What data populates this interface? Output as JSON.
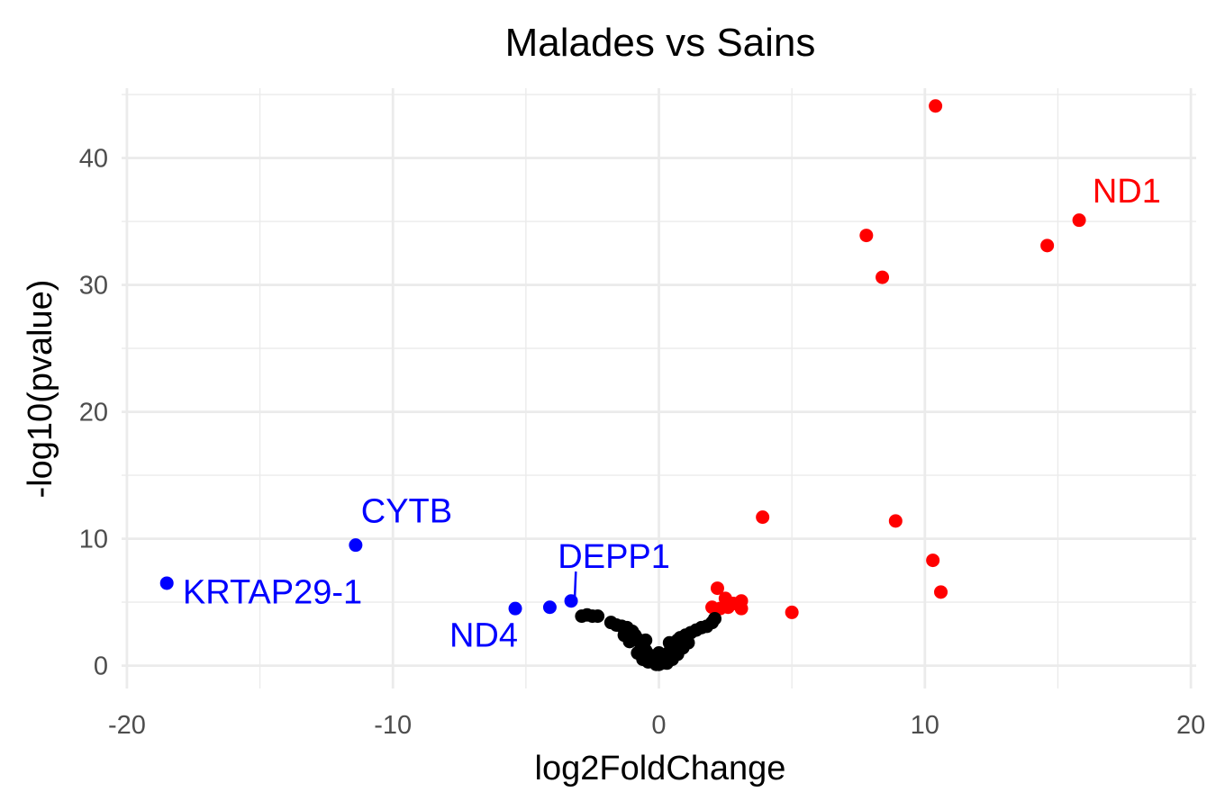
{
  "chart_data": {
    "type": "scatter",
    "title": "Malades vs Sains",
    "xlabel": "log2FoldChange",
    "ylabel": "-log10(pvalue)",
    "xlim": [
      -20.2,
      20.2
    ],
    "ylim": [
      -1.8,
      45.5
    ],
    "x_ticks": [
      -20,
      -10,
      0,
      10,
      20
    ],
    "x_tick_labels": [
      "-20",
      "-10",
      "0",
      "10",
      "20"
    ],
    "y_ticks": [
      0,
      10,
      20,
      30,
      40
    ],
    "y_tick_labels": [
      "0",
      "10",
      "20",
      "30",
      "40"
    ],
    "grid": true,
    "colors": {
      "up": "#ff0000",
      "down": "#0000ff",
      "ns": "#000000",
      "grid": "#ebebeb"
    },
    "series": [
      {
        "group": "up",
        "color": "#ff0000",
        "points": [
          {
            "x": 10.4,
            "y": 44.1
          },
          {
            "x": 15.8,
            "y": 35.1
          },
          {
            "x": 14.6,
            "y": 33.1
          },
          {
            "x": 7.8,
            "y": 33.9
          },
          {
            "x": 8.4,
            "y": 30.6
          },
          {
            "x": 3.9,
            "y": 11.7
          },
          {
            "x": 8.9,
            "y": 11.4
          },
          {
            "x": 10.3,
            "y": 8.3
          },
          {
            "x": 10.6,
            "y": 5.8
          },
          {
            "x": 5.0,
            "y": 4.2
          },
          {
            "x": 2.2,
            "y": 6.1
          },
          {
            "x": 2.5,
            "y": 5.3
          },
          {
            "x": 3.1,
            "y": 5.1
          },
          {
            "x": 2.0,
            "y": 4.6
          },
          {
            "x": 2.3,
            "y": 4.5
          },
          {
            "x": 2.6,
            "y": 4.6
          },
          {
            "x": 2.8,
            "y": 4.9
          },
          {
            "x": 3.1,
            "y": 4.5
          }
        ]
      },
      {
        "group": "down",
        "color": "#0000ff",
        "points": [
          {
            "x": -18.5,
            "y": 6.5
          },
          {
            "x": -11.4,
            "y": 9.5
          },
          {
            "x": -5.4,
            "y": 4.5
          },
          {
            "x": -4.1,
            "y": 4.6
          },
          {
            "x": -3.3,
            "y": 5.1
          }
        ]
      },
      {
        "group": "ns",
        "color": "#000000",
        "points": [
          {
            "x": -2.9,
            "y": 3.9
          },
          {
            "x": -2.7,
            "y": 4.0
          },
          {
            "x": -2.5,
            "y": 3.9
          },
          {
            "x": -2.3,
            "y": 3.9
          },
          {
            "x": -1.8,
            "y": 3.4
          },
          {
            "x": -1.6,
            "y": 3.2
          },
          {
            "x": -1.4,
            "y": 3.1
          },
          {
            "x": -1.2,
            "y": 3.0
          },
          {
            "x": -1.0,
            "y": 2.7
          },
          {
            "x": -0.9,
            "y": 2.4
          },
          {
            "x": -0.8,
            "y": 2.1
          },
          {
            "x": -0.7,
            "y": 1.8
          },
          {
            "x": -0.6,
            "y": 1.5
          },
          {
            "x": -0.5,
            "y": 1.2
          },
          {
            "x": -0.4,
            "y": 0.9
          },
          {
            "x": -0.3,
            "y": 0.6
          },
          {
            "x": -0.2,
            "y": 0.3
          },
          {
            "x": -0.1,
            "y": 0.1
          },
          {
            "x": -0.6,
            "y": 0.5
          },
          {
            "x": -0.4,
            "y": 0.3
          },
          {
            "x": -0.8,
            "y": 1.0
          },
          {
            "x": -1.1,
            "y": 1.9
          },
          {
            "x": -1.3,
            "y": 2.4
          },
          {
            "x": -0.5,
            "y": 2.0
          },
          {
            "x": 0.0,
            "y": 0.1
          },
          {
            "x": 0.0,
            "y": 0.5
          },
          {
            "x": 0.0,
            "y": 1.0
          },
          {
            "x": 0.1,
            "y": 0.2
          },
          {
            "x": 0.2,
            "y": 0.5
          },
          {
            "x": 0.3,
            "y": 0.8
          },
          {
            "x": 0.4,
            "y": 1.1
          },
          {
            "x": 0.5,
            "y": 1.4
          },
          {
            "x": 0.6,
            "y": 1.7
          },
          {
            "x": 0.7,
            "y": 2.0
          },
          {
            "x": 0.8,
            "y": 2.2
          },
          {
            "x": 1.0,
            "y": 2.4
          },
          {
            "x": 1.2,
            "y": 2.6
          },
          {
            "x": 1.4,
            "y": 2.8
          },
          {
            "x": 1.6,
            "y": 3.0
          },
          {
            "x": 1.8,
            "y": 3.1
          },
          {
            "x": 2.0,
            "y": 3.4
          },
          {
            "x": 2.1,
            "y": 3.7
          },
          {
            "x": 0.3,
            "y": 0.2
          },
          {
            "x": 0.5,
            "y": 0.5
          },
          {
            "x": 0.7,
            "y": 0.9
          },
          {
            "x": 0.9,
            "y": 1.4
          },
          {
            "x": 1.1,
            "y": 1.8
          },
          {
            "x": 0.4,
            "y": 1.8
          },
          {
            "x": 0.6,
            "y": 1.2
          }
        ]
      }
    ],
    "annotations": [
      {
        "text": "ND1",
        "color": "#ff0000",
        "x": 16.3,
        "y": 36.5,
        "anchor": "start"
      },
      {
        "text": "CYTB",
        "color": "#0000ff",
        "x": -11.2,
        "y": 11.3,
        "anchor": "start"
      },
      {
        "text": "KRTAP29-1",
        "color": "#0000ff",
        "x": -17.9,
        "y": 4.9,
        "anchor": "start"
      },
      {
        "text": "ND4",
        "color": "#0000ff",
        "x": -5.3,
        "y": 1.5,
        "anchor": "end"
      },
      {
        "text": "DEPP1",
        "color": "#0000ff",
        "x": -3.8,
        "y": 7.7,
        "anchor": "start",
        "leader_to": {
          "x": -3.3,
          "y": 5.1
        }
      }
    ]
  }
}
